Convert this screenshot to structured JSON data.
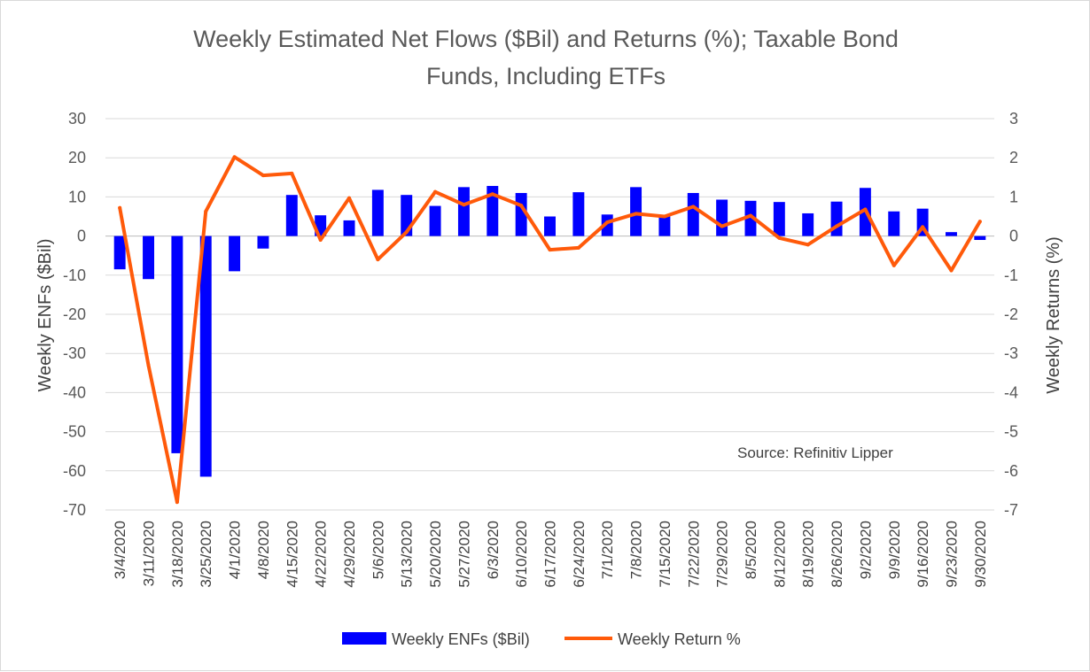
{
  "chart_data": {
    "type": "bar",
    "title": "Weekly Estimated Net Flows ($Bil) and Returns (%); Taxable Bond Funds, Including ETFs",
    "title_lines": [
      "Weekly Estimated Net Flows ($Bil) and Returns (%); Taxable Bond",
      "Funds, Including ETFs"
    ],
    "ylabel": "Weekly ENFs ($Bil)",
    "y2label": "Weekly Returns (%)",
    "ylim": [
      -70,
      30
    ],
    "y2lim": [
      -7,
      3
    ],
    "yticks": [
      "30",
      "20",
      "10",
      "0",
      "-10",
      "-20",
      "-30",
      "-40",
      "-50",
      "-60",
      "-70"
    ],
    "y2ticks": [
      "3",
      "2",
      "1",
      "0",
      "-1",
      "-2",
      "-3",
      "-4",
      "-5",
      "-6",
      "-7"
    ],
    "categories": [
      "3/4/2020",
      "3/11/2020",
      "3/18/2020",
      "3/25/2020",
      "4/1/2020",
      "4/8/2020",
      "4/15/2020",
      "4/22/2020",
      "4/29/2020",
      "5/6/2020",
      "5/13/2020",
      "5/20/2020",
      "5/27/2020",
      "6/3/2020",
      "6/10/2020",
      "6/17/2020",
      "6/24/2020",
      "7/1/2020",
      "7/8/2020",
      "7/15/2020",
      "7/22/2020",
      "7/29/2020",
      "8/5/2020",
      "8/12/2020",
      "8/19/2020",
      "8/26/2020",
      "9/2/2020",
      "9/9/2020",
      "9/16/2020",
      "9/23/2020",
      "9/30/2020"
    ],
    "series": [
      {
        "name": "Weekly ENFs ($Bil)",
        "type": "bar",
        "axis": "left",
        "color": "#0000ff",
        "values": [
          -8.5,
          -11,
          -55.5,
          -61.5,
          -9,
          -3.2,
          10.5,
          5.3,
          4,
          11.8,
          10.5,
          7.7,
          12.5,
          12.8,
          11,
          5,
          11.2,
          5.5,
          12.5,
          5,
          11,
          9.3,
          9,
          8.7,
          5.8,
          8.8,
          12.3,
          6.3,
          7,
          1,
          -1
        ]
      },
      {
        "name": "Weekly Return %",
        "type": "line",
        "axis": "right",
        "color": "#ff5a0a",
        "values": [
          0.72,
          -3.3,
          -6.8,
          0.63,
          2.02,
          1.55,
          1.6,
          -0.1,
          0.97,
          -0.6,
          0.1,
          1.13,
          0.8,
          1.07,
          0.78,
          -0.35,
          -0.3,
          0.35,
          0.57,
          0.5,
          0.75,
          0.25,
          0.52,
          -0.05,
          -0.22,
          0.25,
          0.68,
          -0.75,
          0.23,
          -0.88,
          0.37
        ]
      }
    ],
    "legend": {
      "placement": "bottom"
    },
    "grid": true,
    "source_note": "Source: Refinitiv Lipper"
  }
}
